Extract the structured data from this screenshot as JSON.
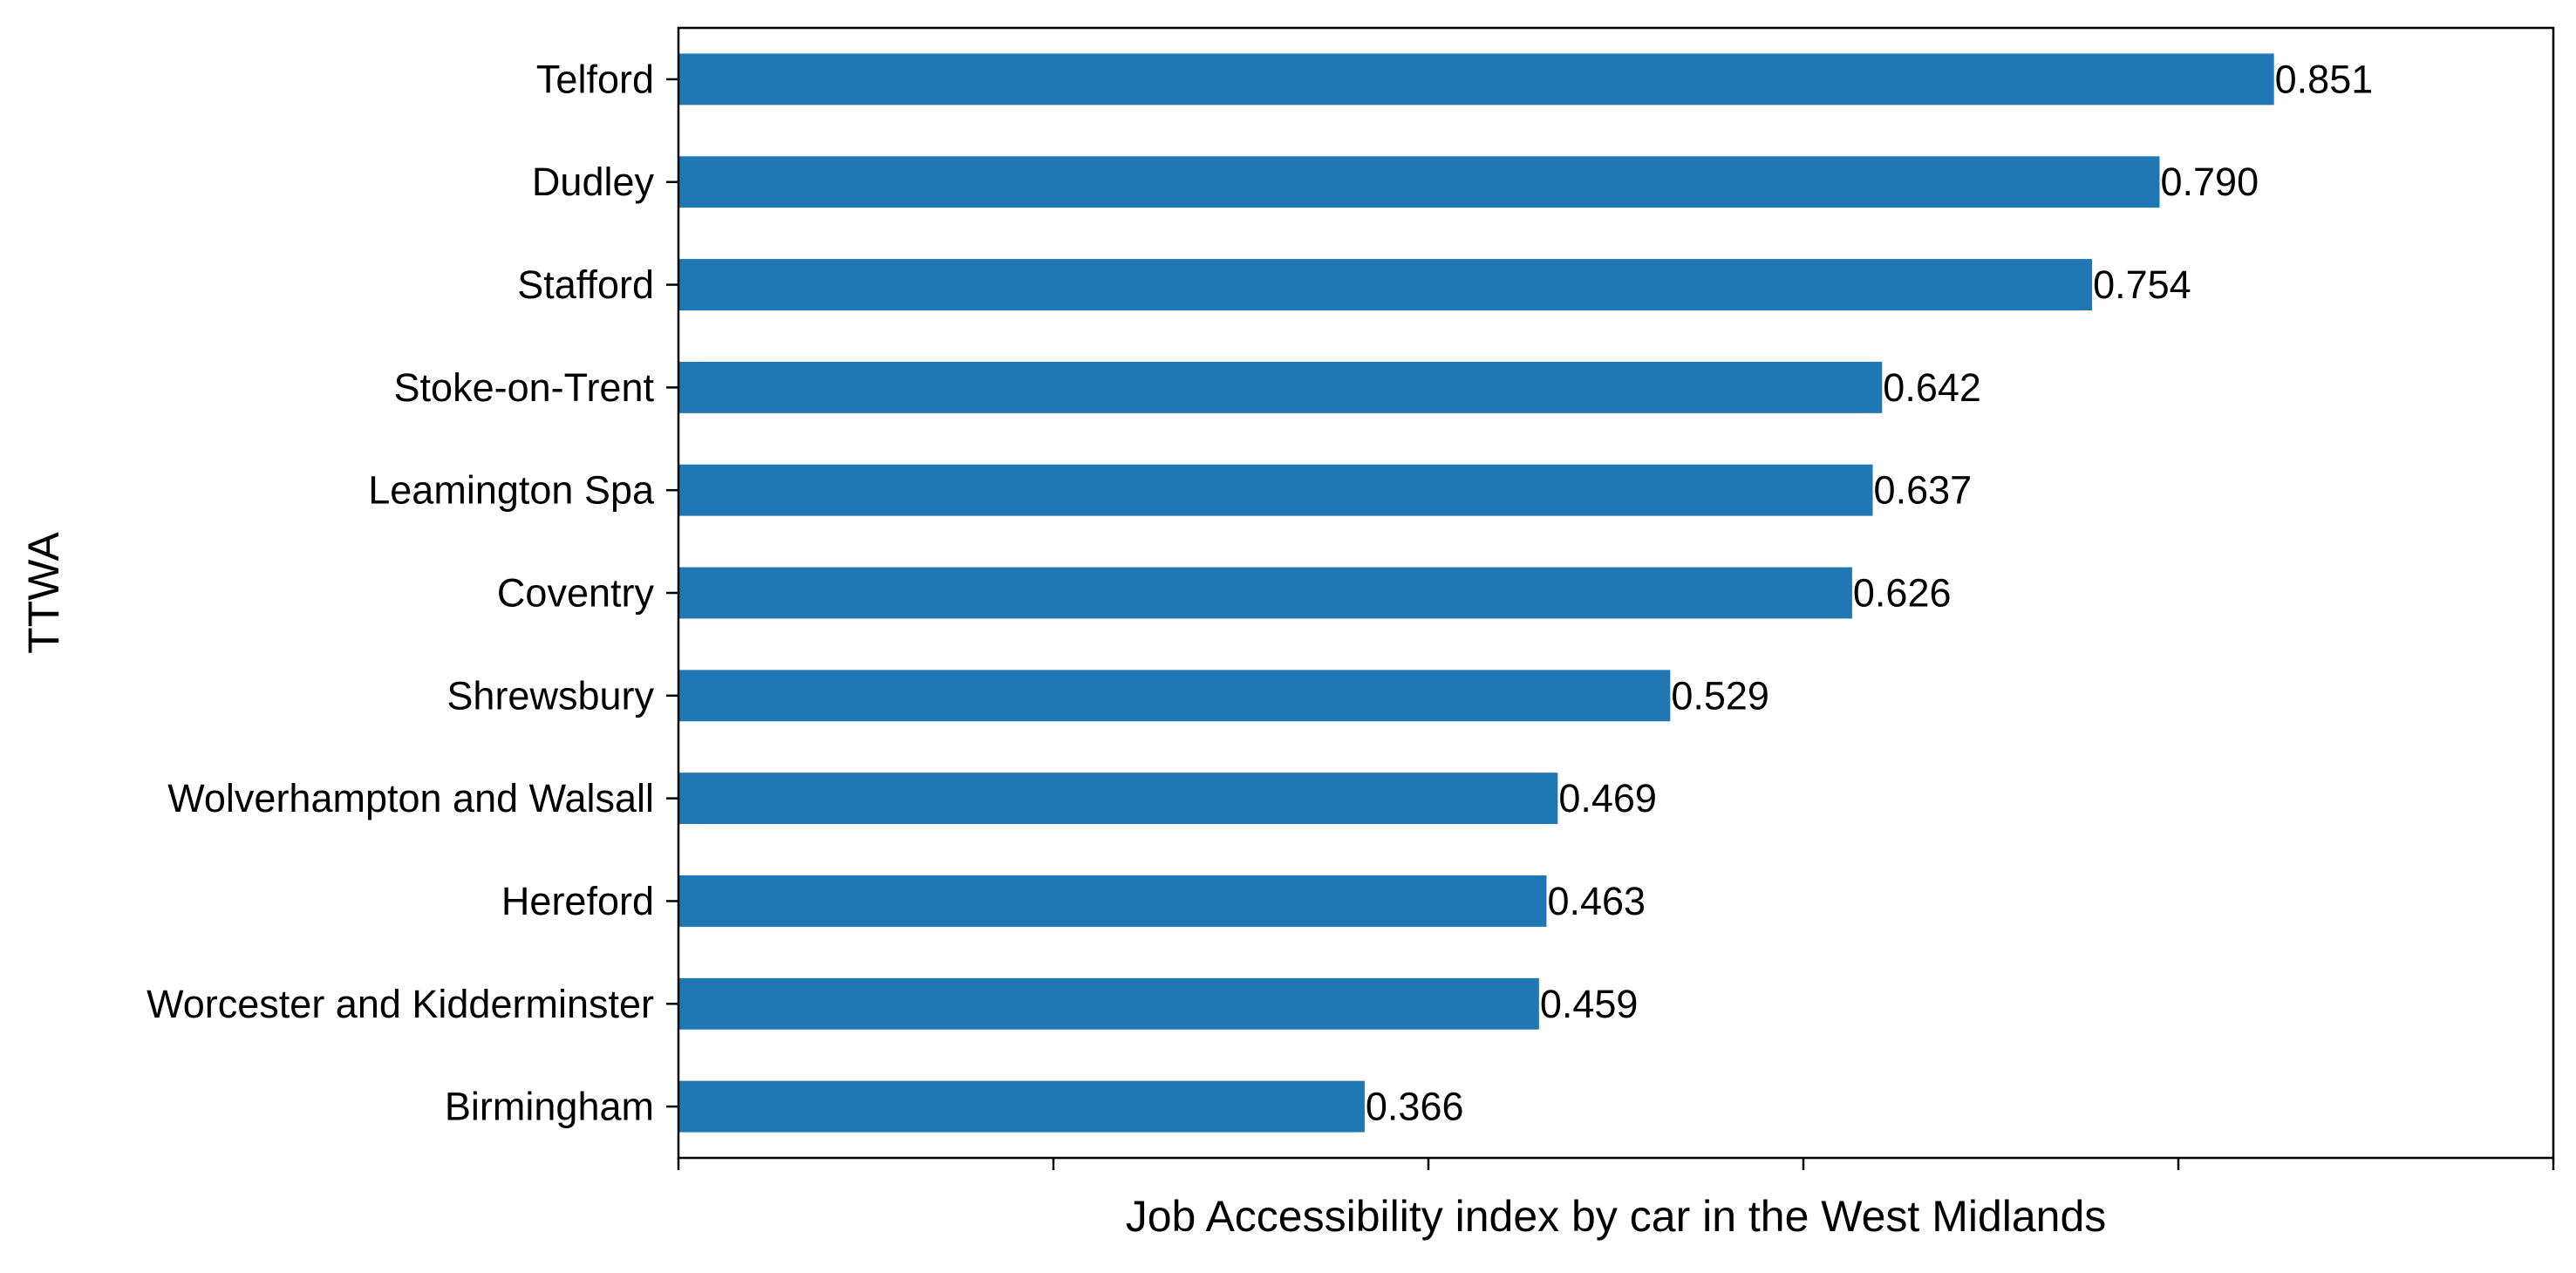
{
  "chart_data": {
    "type": "bar",
    "orientation": "horizontal",
    "title": "",
    "xlabel": "Job Accessibility index by car in the West Midlands",
    "ylabel": "TTWA",
    "categories": [
      "Telford",
      "Dudley",
      "Stafford",
      "Stoke-on-Trent",
      "Leamington Spa",
      "Coventry",
      "Shrewsbury",
      "Wolverhampton and Walsall",
      "Hereford",
      "Worcester and Kidderminster",
      "Birmingham"
    ],
    "values": [
      0.851,
      0.79,
      0.754,
      0.642,
      0.637,
      0.626,
      0.529,
      0.469,
      0.463,
      0.459,
      0.366
    ],
    "value_labels": [
      "0.851",
      "0.790",
      "0.754",
      "0.642",
      "0.637",
      "0.626",
      "0.529",
      "0.469",
      "0.463",
      "0.459",
      "0.366"
    ],
    "xlim": [
      0,
      1.0
    ],
    "x_tick_values": [
      0,
      0.2,
      0.4,
      0.6,
      0.8,
      1.0
    ],
    "x_tick_labels_shown": false,
    "grid": false,
    "legend": "none",
    "bar_color": "#1f77b4"
  }
}
